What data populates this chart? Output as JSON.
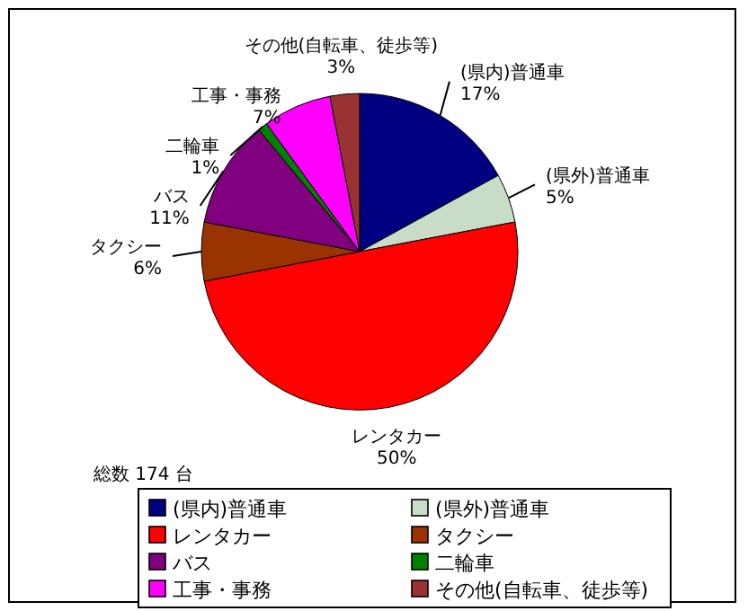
{
  "chart_data": {
    "type": "pie",
    "categories": [
      "(県内)普通車",
      "(県外)普通車",
      "レンタカー",
      "タクシー",
      "バス",
      "二輪車",
      "工事・事務",
      "その他(自転車、徒歩等)"
    ],
    "values": [
      17,
      5,
      50,
      6,
      11,
      1,
      7,
      3
    ],
    "colors": [
      "#000080",
      "#c8dcc8",
      "#ff0000",
      "#993300",
      "#800080",
      "#008000",
      "#ff00ff",
      "#993333"
    ],
    "value_labels": [
      "17%",
      "5%",
      "50%",
      "6%",
      "11%",
      "1%",
      "7%",
      "3%"
    ],
    "annotations": [
      "総数 174 台"
    ],
    "legend": "bottom"
  }
}
